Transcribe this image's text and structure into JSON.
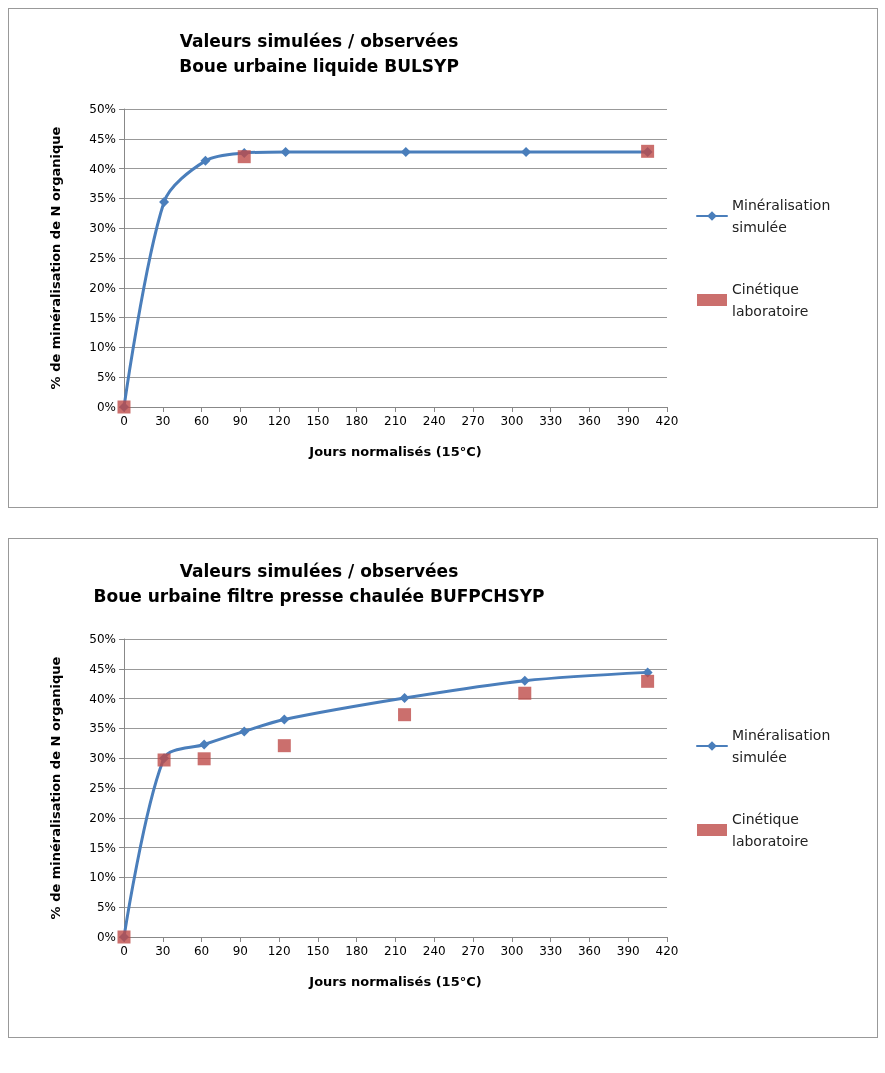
{
  "chart_data": [
    {
      "type": "line",
      "title": "Valeurs simulées / observées",
      "subtitle": "Boue urbaine liquide BULSYP",
      "xlabel": "Jours normalisés (15°C)",
      "ylabel": "% de minéralisation de N organique",
      "series": [
        {
          "name": "Minéralisation simulée",
          "color": "#4a7ebb",
          "marker": "diamond",
          "x": [
            0,
            31,
            63,
            93,
            125,
            218,
            311,
            405
          ],
          "values": [
            0,
            34.4,
            41.3,
            42.6,
            42.8,
            42.8,
            42.8,
            42.8
          ]
        },
        {
          "name": "Cinétique laboratoire",
          "type": "scatter",
          "color": "#be4b48",
          "marker": "square",
          "x": [
            0,
            93,
            405
          ],
          "values": [
            0,
            42.0,
            42.9
          ]
        }
      ],
      "xlim": [
        0,
        420
      ],
      "xticks": [
        0,
        30,
        60,
        90,
        120,
        150,
        180,
        210,
        240,
        270,
        300,
        330,
        360,
        390,
        420
      ],
      "ylim": [
        0,
        50
      ],
      "yticks": [
        {
          "value": 0,
          "label": "0%"
        },
        {
          "value": 5,
          "label": "5%"
        },
        {
          "value": 10,
          "label": "10%"
        },
        {
          "value": 15,
          "label": "15%"
        },
        {
          "value": 20,
          "label": "20%"
        },
        {
          "value": 25,
          "label": "25%"
        },
        {
          "value": 30,
          "label": "30%"
        },
        {
          "value": 35,
          "label": "35%"
        },
        {
          "value": 40,
          "label": "40%"
        },
        {
          "value": 45,
          "label": "45%"
        },
        {
          "value": 50,
          "label": "50%"
        }
      ],
      "grid": "y",
      "legend": "right"
    },
    {
      "type": "line",
      "title": "Valeurs simulées / observées",
      "subtitle": "Boue urbaine filtre presse chaulée BUFPCHSYP",
      "xlabel": "Jours normalisés (15°C)",
      "ylabel": "% de minéralisation de N organique",
      "series": [
        {
          "name": "Minéralisation simulée",
          "color": "#4a7ebb",
          "marker": "diamond",
          "x": [
            0,
            31,
            62,
            93,
            124,
            217,
            310,
            405
          ],
          "values": [
            0,
            30.0,
            32.3,
            34.5,
            36.5,
            40.1,
            43.0,
            44.4
          ]
        },
        {
          "name": "Cinétique laboratoire",
          "type": "scatter",
          "color": "#be4b48",
          "marker": "square",
          "x": [
            0,
            31,
            62,
            124,
            217,
            310,
            405
          ],
          "values": [
            0,
            29.7,
            29.9,
            32.1,
            37.3,
            40.9,
            42.9
          ]
        }
      ],
      "xlim": [
        0,
        420
      ],
      "xticks": [
        0,
        30,
        60,
        90,
        120,
        150,
        180,
        210,
        240,
        270,
        300,
        330,
        360,
        390,
        420
      ],
      "ylim": [
        0,
        50
      ],
      "yticks": [
        {
          "value": 0,
          "label": "0%"
        },
        {
          "value": 5,
          "label": "5%"
        },
        {
          "value": 10,
          "label": "10%"
        },
        {
          "value": 15,
          "label": "15%"
        },
        {
          "value": 20,
          "label": "20%"
        },
        {
          "value": 25,
          "label": "25%"
        },
        {
          "value": 30,
          "label": "30%"
        },
        {
          "value": 35,
          "label": "35%"
        },
        {
          "value": 40,
          "label": "40%"
        },
        {
          "value": 45,
          "label": "45%"
        },
        {
          "value": 50,
          "label": "50%"
        }
      ],
      "grid": "y",
      "legend": "right"
    }
  ]
}
